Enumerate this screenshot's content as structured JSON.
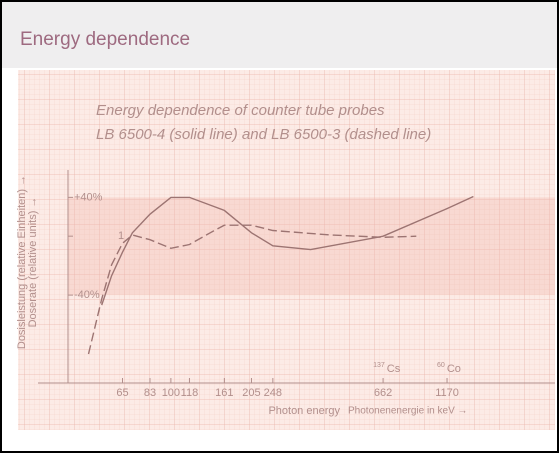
{
  "chart_data": {
    "type": "line",
    "header": "Energy dependence",
    "title": "Energy dependence of counter tube probes",
    "subtitle": "LB 6500-4 (solid line) and LB 6500-3 (dashed line)",
    "ylabel": "Dosisleistung (relative Einheiten) →",
    "ylabel2": "Doserate (relative units) →",
    "xlabel": "Photon energy",
    "xlabel2": "Photonenenergie in keV →",
    "xscale": "log",
    "yscale": "log",
    "xlim": [
      40,
      2800
    ],
    "ylim": [
      0.28,
      3.4
    ],
    "xticks": [
      65,
      83,
      100,
      118,
      161,
      205,
      248,
      662,
      1170
    ],
    "yticks": [
      {
        "value": 1.4,
        "label": "+40%"
      },
      1,
      {
        "value": 0.6,
        "label": "-40%"
      }
    ],
    "annotations": [
      {
        "mass": "137",
        "symbol": "Cs",
        "x": 662
      },
      {
        "mass": "60",
        "symbol": "Co",
        "x": 1170
      }
    ],
    "series": [
      {
        "name": "LB 6500-4",
        "color": "#9c7472",
        "dash": false,
        "x": [
          54,
          59,
          65,
          71,
          83,
          100,
          118,
          161,
          205,
          248,
          347,
          662,
          1170,
          1480
        ],
        "values": [
          0.55,
          0.71,
          0.87,
          1.03,
          1.21,
          1.4,
          1.4,
          1.25,
          1.03,
          0.92,
          0.89,
          1.0,
          1.27,
          1.41
        ]
      },
      {
        "name": "LB 6500-3",
        "color": "#9c7472",
        "dash": true,
        "x": [
          48,
          54,
          59,
          65,
          71,
          83,
          100,
          118,
          142,
          161,
          205,
          248,
          415,
          662,
          890
        ],
        "values": [
          0.36,
          0.58,
          0.78,
          0.94,
          1.01,
          0.97,
          0.9,
          0.93,
          1.03,
          1.1,
          1.1,
          1.05,
          1.01,
          0.99,
          1.0
        ]
      }
    ]
  }
}
